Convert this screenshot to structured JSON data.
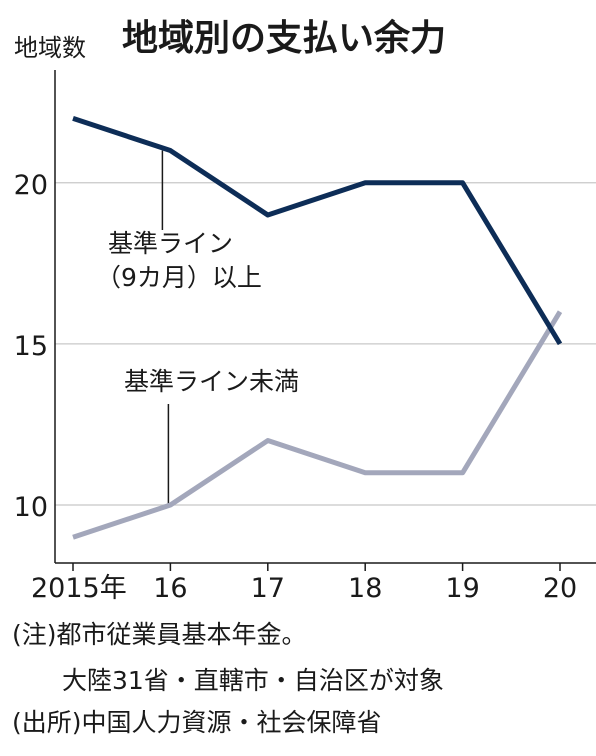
{
  "chart_data": {
    "type": "line",
    "title": "地域別の支払い余力",
    "ylabel": "地域数",
    "x": [
      "2015年",
      "16",
      "17",
      "18",
      "19",
      "20"
    ],
    "yticks": [
      10,
      15,
      20
    ],
    "ylim": [
      8.2,
      23.5
    ],
    "series": [
      {
        "name": "基準ライン（9カ月）以上",
        "values": [
          22,
          21,
          19,
          20,
          20,
          15
        ],
        "color": "#0d2d57"
      },
      {
        "name": "基準ライン未満",
        "values": [
          9,
          10,
          12,
          11,
          11,
          16
        ],
        "color": "#a3a7bb"
      }
    ],
    "annotations": {
      "upper_line1": "基準ライン",
      "upper_line2": "（9カ月）以上",
      "lower": "基準ライン未満"
    }
  },
  "notes": [
    "(注)都市従業員基本年金。",
    "　　大陸31省・直轄市・自治区が対象",
    "(出所)中国人力資源・社会保障省"
  ]
}
